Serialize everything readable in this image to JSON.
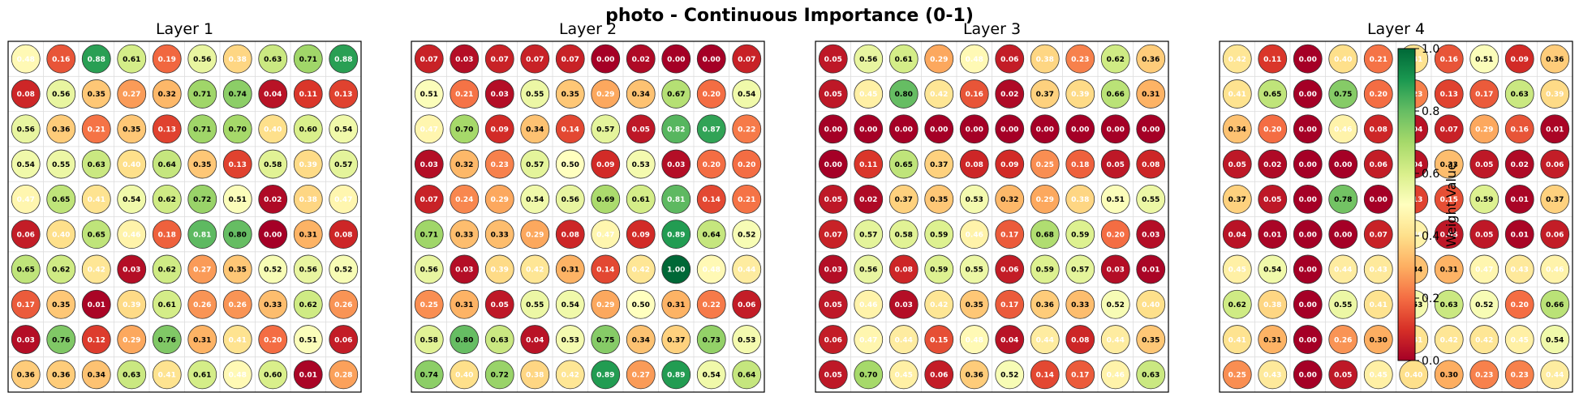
{
  "title": "photo - Continuous Importance (0-1)",
  "colorbar": {
    "label": "Weight Value",
    "ticks": [
      0.0,
      0.2,
      0.4,
      0.6,
      0.8,
      1.0
    ],
    "tick_labels": [
      "0.0",
      "0.2",
      "0.4",
      "0.6",
      "0.8",
      "1.0"
    ],
    "colormap": "RdYlGn",
    "range": [
      0,
      1
    ]
  },
  "chart_data": [
    {
      "type": "heatmap",
      "title": "Layer 1",
      "grid_size": [
        10,
        10
      ],
      "vmin": 0,
      "vmax": 1,
      "values": [
        [
          0.48,
          0.16,
          0.88,
          0.61,
          0.19,
          0.56,
          0.38,
          0.63,
          0.71,
          0.88
        ],
        [
          0.08,
          0.56,
          0.35,
          0.27,
          0.32,
          0.71,
          0.74,
          0.04,
          0.11,
          0.13
        ],
        [
          0.56,
          0.36,
          0.21,
          0.35,
          0.13,
          0.71,
          0.7,
          0.4,
          0.6,
          0.54
        ],
        [
          0.54,
          0.55,
          0.63,
          0.4,
          0.64,
          0.35,
          0.13,
          0.58,
          0.39,
          0.57
        ],
        [
          0.47,
          0.65,
          0.41,
          0.54,
          0.62,
          0.72,
          0.51,
          0.02,
          0.38,
          0.47
        ],
        [
          0.06,
          0.4,
          0.65,
          0.46,
          0.18,
          0.81,
          0.8,
          0.0,
          0.31,
          0.08
        ],
        [
          0.65,
          0.62,
          0.42,
          0.03,
          0.62,
          0.27,
          0.35,
          0.52,
          0.56,
          0.52
        ],
        [
          0.17,
          0.35,
          0.01,
          0.39,
          0.61,
          0.26,
          0.26,
          0.33,
          0.62,
          0.26
        ],
        [
          0.03,
          0.76,
          0.12,
          0.29,
          0.76,
          0.31,
          0.41,
          0.2,
          0.51,
          0.06
        ],
        [
          0.36,
          0.36,
          0.34,
          0.63,
          0.41,
          0.61,
          0.48,
          0.6,
          0.01,
          0.28
        ]
      ]
    },
    {
      "type": "heatmap",
      "title": "Layer 2",
      "grid_size": [
        10,
        10
      ],
      "vmin": 0,
      "vmax": 1,
      "values": [
        [
          0.07,
          0.03,
          0.07,
          0.07,
          0.07,
          0.0,
          0.02,
          0.0,
          0.0,
          0.07
        ],
        [
          0.51,
          0.21,
          0.03,
          0.55,
          0.35,
          0.29,
          0.34,
          0.67,
          0.2,
          0.54
        ],
        [
          0.47,
          0.7,
          0.09,
          0.34,
          0.14,
          0.57,
          0.05,
          0.82,
          0.87,
          0.22
        ],
        [
          0.03,
          0.32,
          0.23,
          0.57,
          0.5,
          0.09,
          0.53,
          0.03,
          0.2,
          0.2
        ],
        [
          0.07,
          0.24,
          0.29,
          0.54,
          0.56,
          0.69,
          0.61,
          0.81,
          0.14,
          0.21
        ],
        [
          0.71,
          0.33,
          0.33,
          0.29,
          0.08,
          0.47,
          0.09,
          0.89,
          0.64,
          0.52
        ],
        [
          0.56,
          0.03,
          0.39,
          0.42,
          0.31,
          0.14,
          0.42,
          1.0,
          0.48,
          0.44
        ],
        [
          0.25,
          0.31,
          0.05,
          0.55,
          0.54,
          0.29,
          0.5,
          0.31,
          0.22,
          0.06
        ],
        [
          0.58,
          0.8,
          0.63,
          0.04,
          0.53,
          0.75,
          0.34,
          0.37,
          0.73,
          0.53
        ],
        [
          0.74,
          0.4,
          0.72,
          0.38,
          0.42,
          0.89,
          0.27,
          0.89,
          0.54,
          0.64
        ]
      ]
    },
    {
      "type": "heatmap",
      "title": "Layer 3",
      "grid_size": [
        10,
        10
      ],
      "vmin": 0,
      "vmax": 1,
      "values": [
        [
          0.05,
          0.56,
          0.61,
          0.29,
          0.48,
          0.06,
          0.38,
          0.23,
          0.62,
          0.36
        ],
        [
          0.05,
          0.45,
          0.8,
          0.42,
          0.16,
          0.02,
          0.37,
          0.39,
          0.66,
          0.31
        ],
        [
          0.0,
          0.0,
          0.0,
          0.0,
          0.0,
          0.0,
          0.0,
          0.0,
          0.0,
          0.0
        ],
        [
          0.0,
          0.11,
          0.65,
          0.37,
          0.08,
          0.09,
          0.25,
          0.18,
          0.05,
          0.08
        ],
        [
          0.05,
          0.02,
          0.37,
          0.35,
          0.53,
          0.32,
          0.29,
          0.38,
          0.51,
          0.55
        ],
        [
          0.07,
          0.57,
          0.58,
          0.59,
          0.46,
          0.17,
          0.68,
          0.59,
          0.2,
          0.03
        ],
        [
          0.03,
          0.56,
          0.08,
          0.59,
          0.55,
          0.06,
          0.59,
          0.57,
          0.03,
          0.01
        ],
        [
          0.05,
          0.46,
          0.03,
          0.42,
          0.35,
          0.17,
          0.36,
          0.33,
          0.52,
          0.4
        ],
        [
          0.06,
          0.47,
          0.44,
          0.15,
          0.48,
          0.04,
          0.44,
          0.08,
          0.44,
          0.35
        ],
        [
          0.05,
          0.7,
          0.45,
          0.06,
          0.36,
          0.52,
          0.14,
          0.17,
          0.46,
          0.63
        ]
      ]
    },
    {
      "type": "heatmap",
      "title": "Layer 4",
      "grid_size": [
        10,
        10
      ],
      "vmin": 0,
      "vmax": 1,
      "values": [
        [
          0.42,
          0.11,
          0.0,
          0.4,
          0.21,
          0.41,
          0.16,
          0.51,
          0.09,
          0.36
        ],
        [
          0.41,
          0.65,
          0.0,
          0.75,
          0.2,
          0.23,
          0.13,
          0.17,
          0.63,
          0.39
        ],
        [
          0.34,
          0.2,
          0.0,
          0.46,
          0.08,
          0.04,
          0.07,
          0.29,
          0.16,
          0.01
        ],
        [
          0.05,
          0.02,
          0.0,
          0.0,
          0.06,
          0.04,
          0.33,
          0.05,
          0.02,
          0.06
        ],
        [
          0.37,
          0.05,
          0.0,
          0.78,
          0.0,
          0.13,
          0.15,
          0.59,
          0.01,
          0.37
        ],
        [
          0.04,
          0.01,
          0.0,
          0.0,
          0.07,
          0.46,
          0.05,
          0.05,
          0.01,
          0.06
        ],
        [
          0.45,
          0.54,
          0.0,
          0.44,
          0.43,
          0.34,
          0.31,
          0.47,
          0.43,
          0.46
        ],
        [
          0.62,
          0.38,
          0.0,
          0.55,
          0.41,
          0.53,
          0.63,
          0.52,
          0.2,
          0.66
        ],
        [
          0.41,
          0.31,
          0.0,
          0.26,
          0.3,
          0.41,
          0.42,
          0.42,
          0.45,
          0.54
        ],
        [
          0.25,
          0.43,
          0.0,
          0.05,
          0.45,
          0.4,
          0.3,
          0.23,
          0.23,
          0.44
        ]
      ]
    }
  ]
}
